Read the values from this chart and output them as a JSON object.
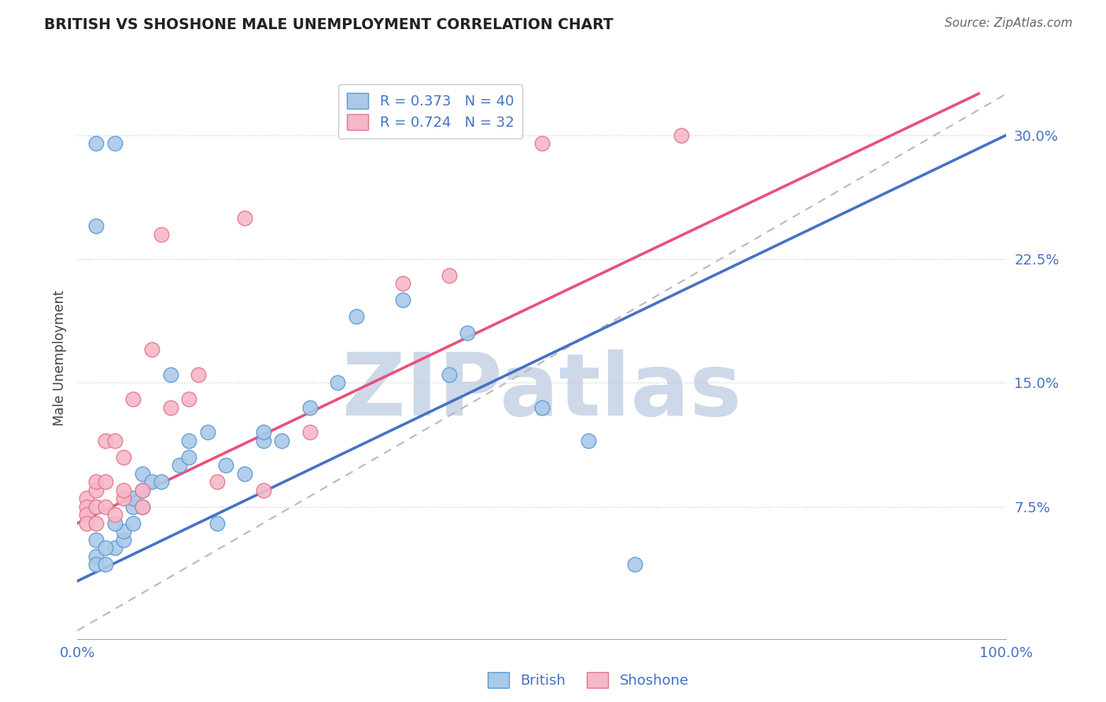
{
  "title": "BRITISH VS SHOSHONE MALE UNEMPLOYMENT CORRELATION CHART",
  "source": "Source: ZipAtlas.com",
  "ylabel": "Male Unemployment",
  "xlim": [
    0.0,
    1.0
  ],
  "ylim": [
    -0.005,
    0.335
  ],
  "yticks": [
    0.075,
    0.15,
    0.225,
    0.3
  ],
  "ytick_labels": [
    "7.5%",
    "15.0%",
    "22.5%",
    "30.0%"
  ],
  "xtick_positions": [
    0.0,
    0.2,
    0.4,
    0.6,
    0.8,
    1.0
  ],
  "xtick_labels": [
    "0.0%",
    "",
    "",
    "",
    "",
    "100.0%"
  ],
  "british_R": 0.373,
  "british_N": 40,
  "shoshone_R": 0.724,
  "shoshone_N": 32,
  "british_fill_color": "#aac9e8",
  "shoshone_fill_color": "#f5b8c8",
  "british_edge_color": "#5b9bd5",
  "shoshone_edge_color": "#e8748a",
  "british_line_color": "#4472c4",
  "shoshone_line_color": "#e8507a",
  "ref_line_color": "#bbbbbb",
  "background_color": "#ffffff",
  "grid_color": "#cccccc",
  "title_color": "#222222",
  "axis_label_color": "#444444",
  "tick_color": "#4472c4",
  "watermark_color": "#cdd8e8",
  "british_x": [
    0.02,
    0.04,
    0.02,
    0.02,
    0.02,
    0.02,
    0.03,
    0.04,
    0.05,
    0.05,
    0.04,
    0.06,
    0.06,
    0.06,
    0.07,
    0.07,
    0.07,
    0.08,
    0.09,
    0.1,
    0.11,
    0.12,
    0.12,
    0.14,
    0.15,
    0.16,
    0.18,
    0.2,
    0.2,
    0.22,
    0.25,
    0.28,
    0.3,
    0.35,
    0.4,
    0.42,
    0.5,
    0.55,
    0.6,
    0.03
  ],
  "british_y": [
    0.295,
    0.295,
    0.245,
    0.055,
    0.045,
    0.04,
    0.04,
    0.05,
    0.055,
    0.06,
    0.065,
    0.065,
    0.075,
    0.08,
    0.075,
    0.085,
    0.095,
    0.09,
    0.09,
    0.155,
    0.1,
    0.105,
    0.115,
    0.12,
    0.065,
    0.1,
    0.095,
    0.115,
    0.12,
    0.115,
    0.135,
    0.15,
    0.19,
    0.2,
    0.155,
    0.18,
    0.135,
    0.115,
    0.04,
    0.05
  ],
  "shoshone_x": [
    0.01,
    0.01,
    0.01,
    0.01,
    0.02,
    0.02,
    0.02,
    0.02,
    0.03,
    0.03,
    0.03,
    0.04,
    0.04,
    0.05,
    0.05,
    0.05,
    0.06,
    0.07,
    0.07,
    0.08,
    0.09,
    0.1,
    0.12,
    0.13,
    0.15,
    0.18,
    0.2,
    0.25,
    0.35,
    0.4,
    0.5,
    0.65
  ],
  "shoshone_y": [
    0.08,
    0.075,
    0.07,
    0.065,
    0.065,
    0.075,
    0.085,
    0.09,
    0.075,
    0.09,
    0.115,
    0.07,
    0.115,
    0.08,
    0.085,
    0.105,
    0.14,
    0.075,
    0.085,
    0.17,
    0.24,
    0.135,
    0.14,
    0.155,
    0.09,
    0.25,
    0.085,
    0.12,
    0.21,
    0.215,
    0.295,
    0.3
  ],
  "british_line": [
    0.0,
    1.0,
    0.03,
    0.3
  ],
  "shoshone_line": [
    0.0,
    0.97,
    0.065,
    0.325
  ],
  "ref_line": [
    0.0,
    1.0,
    0.0,
    0.325
  ]
}
